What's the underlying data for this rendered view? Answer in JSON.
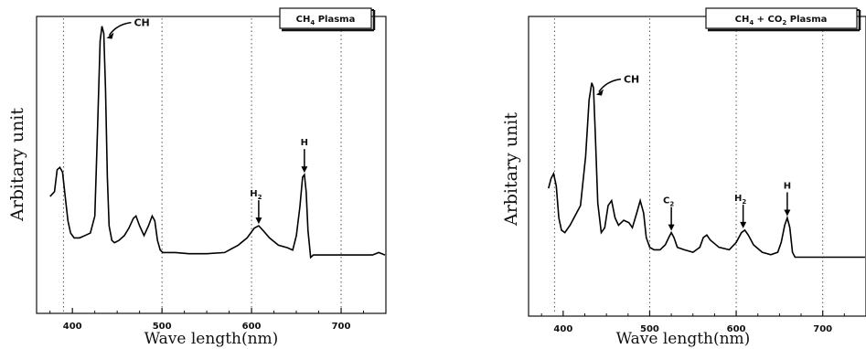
{
  "chart_data": [
    {
      "type": "line",
      "legend": "CH4 Plasma",
      "legend_main": "CH",
      "legend_sub": "4",
      "legend_rest": " Plasma",
      "xlabel": "Wave length(nm)",
      "ylabel": "Arbitary unit",
      "xlim": [
        360,
        750
      ],
      "ylim": [
        0,
        100
      ],
      "xticks": [
        400,
        500,
        600,
        700
      ],
      "gridlines_x": [
        390,
        500,
        600,
        700
      ],
      "series": [
        {
          "x": [
            375,
            380,
            383,
            386,
            389,
            392,
            395,
            398,
            402,
            408,
            414,
            420,
            425,
            428,
            431,
            433,
            435,
            437,
            439,
            441,
            444,
            447,
            452,
            458,
            463,
            468,
            471,
            475,
            480,
            485,
            489,
            492,
            495,
            498,
            501,
            505,
            515,
            530,
            550,
            570,
            585,
            595,
            603,
            608,
            613,
            620,
            630,
            640,
            646,
            650,
            654,
            657,
            659,
            661,
            663,
            666,
            669,
            672,
            680,
            700,
            720,
            735,
            742,
            750
          ],
          "y": [
            28,
            30,
            39,
            40,
            38,
            28,
            18,
            13,
            11,
            11,
            12,
            13,
            20,
            55,
            92,
            98,
            95,
            72,
            36,
            16,
            10,
            9,
            10,
            12,
            15,
            19,
            20,
            16,
            12,
            16,
            20,
            18,
            10,
            6,
            5,
            5,
            5,
            4.5,
            4.5,
            5,
            8,
            11,
            15,
            16,
            14,
            11,
            8,
            7,
            6,
            12,
            24,
            36,
            37,
            30,
            14,
            3,
            4,
            4,
            4,
            4,
            4,
            4,
            5,
            4
          ]
        }
      ],
      "annotations": [
        {
          "label": "CH",
          "x": 435,
          "y": 98
        },
        {
          "label": "H",
          "sub": "2",
          "x": 608,
          "y": 16
        },
        {
          "label": "H",
          "x": 659,
          "y": 37
        }
      ]
    },
    {
      "type": "line",
      "legend": "CH4 + CO2 Plasma",
      "legend_main": "CH",
      "legend_sub": "4",
      "legend_mid": " + CO",
      "legend_sub2": "2",
      "legend_rest": " Plasma",
      "xlabel": "Wave length(nm)",
      "ylabel": "Arbitary unit",
      "xlim": [
        360,
        750
      ],
      "ylim": [
        0,
        100
      ],
      "xticks": [
        400,
        500,
        600,
        700
      ],
      "gridlines_x": [
        390,
        500,
        600,
        700
      ],
      "series": [
        {
          "x": [
            383,
            386,
            389,
            392,
            395,
            398,
            402,
            408,
            414,
            420,
            426,
            430,
            433,
            435,
            437,
            440,
            444,
            448,
            452,
            456,
            460,
            464,
            470,
            476,
            480,
            485,
            489,
            493,
            496,
            500,
            505,
            512,
            518,
            522,
            525,
            528,
            532,
            540,
            550,
            558,
            562,
            566,
            570,
            580,
            592,
            600,
            606,
            610,
            614,
            620,
            630,
            640,
            648,
            652,
            656,
            659,
            662,
            665,
            668,
            672,
            690,
            720,
            750
          ],
          "y": [
            32,
            36,
            38,
            33,
            20,
            15,
            14,
            17,
            21,
            25,
            45,
            68,
            75,
            73,
            55,
            26,
            14,
            16,
            25,
            27,
            20,
            17,
            19,
            18,
            16,
            22,
            27,
            22,
            12,
            8,
            7,
            7,
            9,
            12,
            14,
            12,
            8,
            7,
            6,
            8,
            12,
            13,
            11,
            8,
            7,
            10,
            14,
            15,
            13,
            9,
            6,
            5,
            6,
            10,
            17,
            20,
            16,
            6,
            4,
            4,
            4,
            4,
            4
          ]
        }
      ],
      "annotations": [
        {
          "label": "CH",
          "x": 435,
          "y": 75
        },
        {
          "label": "C",
          "sub": "2",
          "x": 525,
          "y": 14
        },
        {
          "label": "H",
          "sub": "2",
          "x": 608,
          "y": 15
        },
        {
          "label": "H",
          "x": 659,
          "y": 20
        }
      ]
    }
  ]
}
